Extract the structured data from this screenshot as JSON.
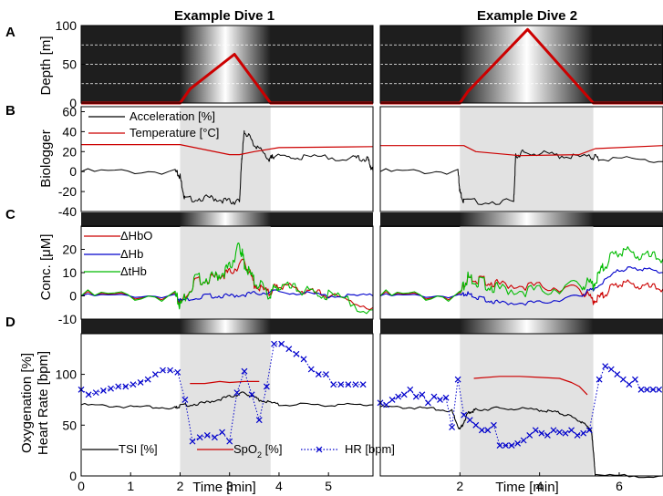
{
  "titles": {
    "dive1": "Example Dive 1",
    "dive2": "Example Dive 2"
  },
  "panel_labels": [
    "A",
    "B",
    "C",
    "D"
  ],
  "axis_labels": {
    "depth": "Depth [m]",
    "biologger": "Biologger",
    "conc": "Conc. [μM]",
    "oxygenation": "Oxygenation [%]",
    "heart_rate": "Heart Rate [bpm]",
    "time": "Time [min]"
  },
  "legends": {
    "biologger": [
      "Acceleration [%]",
      "Temperature [°C]"
    ],
    "conc": [
      "ΔHbO",
      "ΔHb",
      "ΔtHb"
    ],
    "oxygenation": [
      "TSI [%]",
      "SpO2 [%]",
      "HR [bpm]"
    ]
  },
  "colors": {
    "red": "#cc0000",
    "blue": "#0000cc",
    "green": "#00bb00",
    "black": "#000000",
    "shade": "#e2e2e2",
    "dark": "#1e1e1e"
  },
  "chart_data": [
    {
      "type": "line",
      "panel": "A",
      "dive": 1,
      "ylabel": "Depth [m]",
      "ylim": [
        0,
        100
      ],
      "yticks": [
        0,
        50,
        100
      ],
      "xlim": [
        0,
        5.9
      ],
      "dive_window": [
        2.0,
        3.83
      ],
      "series": [
        {
          "x": [
            0,
            2.0,
            2.2,
            3.1,
            3.83,
            5.9
          ],
          "values": [
            0,
            0,
            18,
            63,
            0,
            0
          ]
        }
      ]
    },
    {
      "type": "line",
      "panel": "A",
      "dive": 2,
      "ylabel": "Depth [m]",
      "ylim": [
        0,
        100
      ],
      "xlim": [
        0,
        7.1
      ],
      "dive_window": [
        2.0,
        5.35
      ],
      "series": [
        {
          "x": [
            0,
            2.0,
            2.2,
            3.7,
            5.35,
            7.1
          ],
          "values": [
            0,
            0,
            15,
            95,
            0,
            0
          ]
        }
      ]
    },
    {
      "type": "line",
      "panel": "B",
      "dive": 1,
      "ylim": [
        -40,
        65
      ],
      "yticks": [
        -40,
        -20,
        0,
        20,
        40,
        60
      ],
      "xlim": [
        0,
        5.9
      ],
      "dive_window": [
        2.0,
        3.83
      ],
      "series": [
        {
          "name": "Acceleration [%]",
          "x": [
            0,
            1.9,
            2.0,
            2.1,
            2.6,
            3.0,
            3.2,
            3.25,
            3.3,
            3.5,
            3.8,
            3.9,
            4.5,
            5.5,
            5.8,
            5.9
          ],
          "values": [
            0,
            0,
            -5,
            -28,
            -26,
            -30,
            -30,
            15,
            40,
            28,
            12,
            15,
            14,
            14,
            12,
            0
          ]
        },
        {
          "name": "Temperature [°C]",
          "x": [
            0,
            2.0,
            2.5,
            3.0,
            3.2,
            3.5,
            4.0,
            5.9
          ],
          "values": [
            27,
            27,
            22,
            17,
            17,
            20,
            24,
            25
          ]
        }
      ]
    },
    {
      "type": "line",
      "panel": "B",
      "dive": 2,
      "ylim": [
        -40,
        65
      ],
      "xlim": [
        0,
        7.1
      ],
      "dive_window": [
        2.0,
        5.35
      ],
      "series": [
        {
          "name": "Acceleration [%]",
          "x": [
            0,
            1.95,
            2.0,
            2.1,
            3.35,
            3.4,
            3.6,
            4.5,
            5.3,
            5.5,
            7.1
          ],
          "values": [
            0,
            0,
            -20,
            -30,
            -30,
            15,
            20,
            16,
            14,
            14,
            10
          ]
        },
        {
          "name": "Temperature [°C]",
          "x": [
            0,
            2.1,
            2.4,
            3.5,
            5.0,
            5.4,
            7.1
          ],
          "values": [
            26,
            26,
            20,
            16,
            17,
            23,
            26
          ]
        }
      ]
    },
    {
      "type": "line",
      "panel": "C",
      "dive": 1,
      "ylabel": "Conc. [μM]",
      "ylim": [
        -10,
        30
      ],
      "yticks": [
        -10,
        0,
        10,
        20
      ],
      "xlim": [
        0,
        5.9
      ],
      "dive_window": [
        2.0,
        3.83
      ],
      "series": [
        {
          "name": "ΔHbO",
          "x": [
            0,
            1.9,
            2.0,
            2.3,
            2.7,
            3.0,
            3.3,
            3.5,
            3.8,
            4.0,
            4.5,
            5.0,
            5.9
          ],
          "values": [
            0,
            0,
            -3,
            6,
            8,
            10,
            15,
            5,
            1,
            5,
            2,
            0,
            -5
          ]
        },
        {
          "name": "ΔHb",
          "x": [
            0,
            1.9,
            2.0,
            2.5,
            3.0,
            3.5,
            4.0,
            5.0,
            5.9
          ],
          "values": [
            0,
            0,
            -2,
            0,
            0,
            1,
            2,
            0,
            0
          ]
        },
        {
          "name": "ΔtHb",
          "x": [
            0,
            1.9,
            2.0,
            2.3,
            2.7,
            3.0,
            3.2,
            3.3,
            3.5,
            3.8,
            4.0,
            4.5,
            5.0,
            5.9
          ],
          "values": [
            0,
            0,
            -4,
            7,
            8,
            12,
            22,
            14,
            6,
            1,
            4,
            2,
            0,
            -6
          ]
        }
      ]
    },
    {
      "type": "line",
      "panel": "C",
      "dive": 2,
      "ylim": [
        -10,
        30
      ],
      "xlim": [
        0,
        7.1
      ],
      "dive_window": [
        2.0,
        5.35
      ],
      "series": [
        {
          "name": "ΔHbO",
          "x": [
            0,
            2.0,
            2.2,
            2.5,
            3.0,
            4.0,
            5.0,
            5.35,
            5.6,
            6.0,
            6.5,
            7.1
          ],
          "values": [
            0,
            0,
            8,
            7,
            5,
            4,
            3,
            -2,
            0,
            6,
            4,
            3
          ]
        },
        {
          "name": "ΔHb",
          "x": [
            0,
            2.0,
            2.2,
            2.5,
            3.0,
            4.0,
            5.0,
            5.35,
            6.0,
            6.5,
            7.1
          ],
          "values": [
            0,
            0,
            1,
            -1,
            -3,
            -3,
            0,
            3,
            11,
            12,
            10
          ]
        },
        {
          "name": "ΔtHb",
          "x": [
            0,
            2.0,
            2.2,
            2.5,
            3.0,
            4.0,
            5.0,
            5.35,
            5.6,
            6.0,
            6.5,
            7.1
          ],
          "values": [
            0,
            0,
            8,
            6,
            3,
            2,
            5,
            5,
            12,
            20,
            17,
            16
          ]
        }
      ]
    },
    {
      "type": "line",
      "panel": "D",
      "dive": 1,
      "ylim": [
        0,
        140
      ],
      "yticks": [
        0,
        50,
        100
      ],
      "xlim": [
        0,
        5.9
      ],
      "dive_window": [
        2.0,
        3.83
      ],
      "xlabel": "Time [min]",
      "xticks": [
        0,
        1,
        2,
        3,
        4,
        5
      ],
      "series": [
        {
          "name": "TSI [%]",
          "x": [
            0,
            1.0,
            1.9,
            2.0,
            2.5,
            3.0,
            3.3,
            3.6,
            4.0,
            5.0,
            5.9
          ],
          "values": [
            70,
            68,
            67,
            69,
            72,
            78,
            82,
            75,
            70,
            70,
            70
          ]
        },
        {
          "name": "SpO2 [%]",
          "x": [
            2.2,
            2.5,
            2.8,
            3.0,
            3.3,
            3.5,
            3.6
          ],
          "values": [
            91,
            91,
            93,
            92,
            93,
            93,
            93
          ]
        },
        {
          "name": "HR [bpm]",
          "x": [
            0,
            0.15,
            0.3,
            0.45,
            0.6,
            0.75,
            0.9,
            1.05,
            1.2,
            1.35,
            1.5,
            1.65,
            1.8,
            1.95,
            2.1,
            2.25,
            2.4,
            2.55,
            2.7,
            2.85,
            3.0,
            3.15,
            3.3,
            3.45,
            3.6,
            3.75,
            3.9,
            4.05,
            4.2,
            4.35,
            4.5,
            4.65,
            4.8,
            4.95,
            5.1,
            5.25,
            5.4,
            5.55,
            5.7
          ],
          "values": [
            85,
            80,
            82,
            84,
            86,
            88,
            88,
            90,
            92,
            95,
            100,
            104,
            104,
            102,
            75,
            34,
            38,
            40,
            38,
            43,
            34,
            82,
            103,
            80,
            55,
            88,
            130,
            130,
            125,
            120,
            115,
            105,
            100,
            100,
            90,
            90,
            90,
            90,
            90
          ]
        }
      ]
    },
    {
      "type": "line",
      "panel": "D",
      "dive": 2,
      "ylim": [
        0,
        140
      ],
      "xlim": [
        0,
        7.1
      ],
      "dive_window": [
        2.0,
        5.35
      ],
      "xlabel": "Time [min]",
      "xticks": [
        2,
        4,
        6
      ],
      "series": [
        {
          "name": "TSI [%]",
          "x": [
            0,
            1.0,
            1.8,
            2.0,
            2.2,
            2.4,
            3.0,
            4.0,
            4.5,
            5.0,
            5.3,
            5.35,
            5.4,
            7.1
          ],
          "values": [
            68,
            67,
            64,
            45,
            62,
            65,
            67,
            65,
            62,
            55,
            45,
            25,
            0,
            0
          ]
        },
        {
          "name": "SpO2 [%]",
          "x": [
            2.35,
            3.0,
            3.5,
            4.0,
            4.5,
            4.8,
            5.0,
            5.2
          ],
          "values": [
            96,
            98,
            98,
            97,
            96,
            92,
            88,
            80
          ]
        },
        {
          "name": "HR [bpm]",
          "x": [
            0,
            0.15,
            0.3,
            0.45,
            0.6,
            0.75,
            0.9,
            1.05,
            1.2,
            1.35,
            1.5,
            1.65,
            1.8,
            1.95,
            2.1,
            2.25,
            2.4,
            2.55,
            2.7,
            2.85,
            3.0,
            3.15,
            3.3,
            3.45,
            3.6,
            3.75,
            3.9,
            4.05,
            4.2,
            4.35,
            4.5,
            4.65,
            4.8,
            4.95,
            5.1,
            5.25,
            5.5,
            5.65,
            5.8,
            5.95,
            6.1,
            6.25,
            6.4,
            6.55,
            6.7,
            6.85,
            7.0
          ],
          "values": [
            72,
            70,
            75,
            78,
            80,
            85,
            78,
            80,
            72,
            78,
            75,
            77,
            48,
            95,
            60,
            55,
            50,
            45,
            45,
            50,
            30,
            30,
            30,
            32,
            35,
            40,
            45,
            42,
            40,
            45,
            43,
            42,
            45,
            40,
            42,
            45,
            95,
            108,
            105,
            100,
            95,
            90,
            95,
            85,
            85,
            85,
            85
          ]
        }
      ]
    }
  ]
}
